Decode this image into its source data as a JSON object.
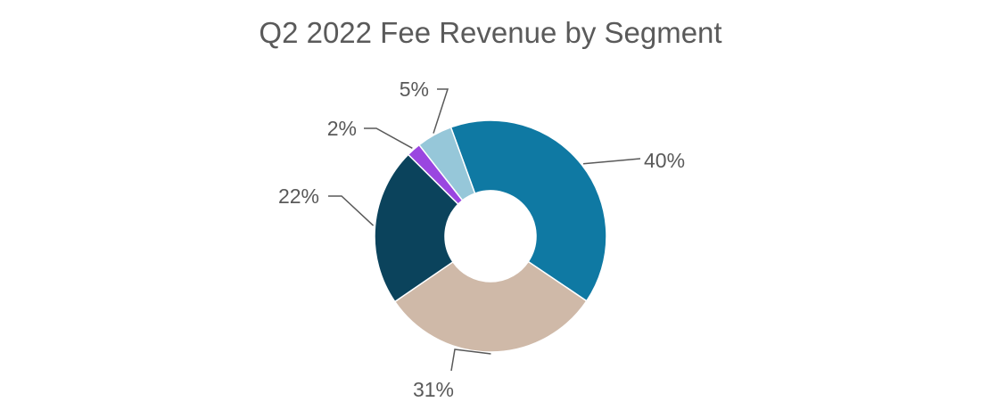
{
  "chart_data": {
    "type": "pie",
    "variant": "donut",
    "title": "Q2 2022 Fee Revenue by Segment",
    "slices": [
      {
        "value": 40,
        "label": "40%",
        "color": "#0f79a3"
      },
      {
        "value": 31,
        "label": "31%",
        "color": "#cfb9a8"
      },
      {
        "value": 22,
        "label": "22%",
        "color": "#0b435c"
      },
      {
        "value": 2,
        "label": "2%",
        "color": "#9a46e0"
      },
      {
        "value": 5,
        "label": "5%",
        "color": "#96c7d9"
      }
    ],
    "legend": "none"
  }
}
